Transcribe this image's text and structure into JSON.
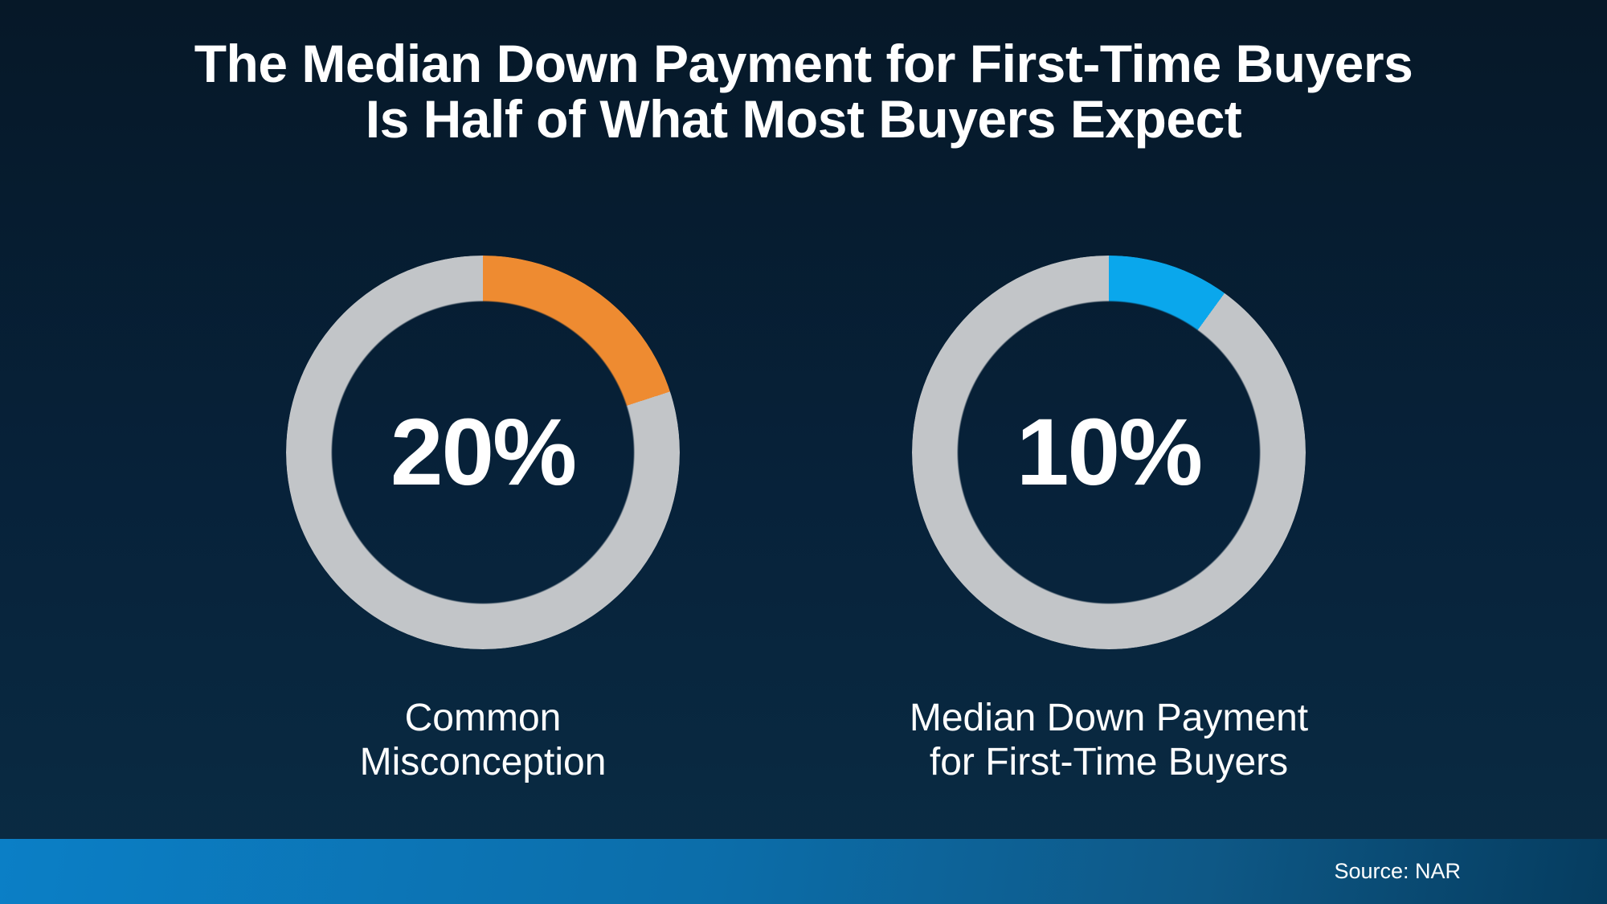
{
  "header": {
    "title": "The Median Down Payment for First-Time Buyers\nIs Half of What Most Buyers Expect"
  },
  "footer": {
    "source": "Source: NAR"
  },
  "colors": {
    "background_top": "#061828",
    "background_bottom": "#0a2c44",
    "bar_gradient_left": "#0b7fc6",
    "bar_gradient_right": "#053c5f",
    "track_gray": "#c2c5c8",
    "orange": "#ee8b31",
    "blue": "#0aa7ec",
    "text": "#ffffff"
  },
  "chart_data": [
    {
      "type": "pie",
      "variant": "donut",
      "value_pct": 20,
      "values": {
        "segment": 20,
        "remainder": 80
      },
      "center_label": "20%",
      "label": "Common\nMisconception",
      "segment_color": "#ee8b31",
      "track_color": "#c2c5c8",
      "start_angle_deg": 0,
      "direction": "clockwise",
      "legend": "none"
    },
    {
      "type": "pie",
      "variant": "donut",
      "value_pct": 10,
      "values": {
        "segment": 10,
        "remainder": 90
      },
      "center_label": "10%",
      "label": "Median Down Payment\nfor First-Time Buyers",
      "segment_color": "#0aa7ec",
      "track_color": "#c2c5c8",
      "start_angle_deg": 0,
      "direction": "clockwise",
      "legend": "none"
    }
  ]
}
